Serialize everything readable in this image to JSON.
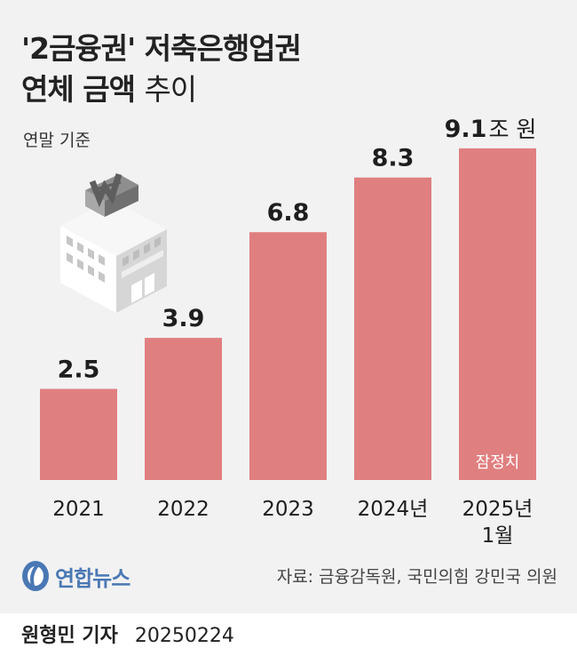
{
  "title": {
    "line1": "'2금융권' 저축은행업권",
    "line2_bold": "연체 금액",
    "line2_light": "추이"
  },
  "unit_note": "연말 기준",
  "chart_data": {
    "type": "bar",
    "categories": [
      "2021",
      "2022",
      "2023",
      "2024년",
      "2025년 1월"
    ],
    "category_lines": [
      [
        "2021"
      ],
      [
        "2022"
      ],
      [
        "2023"
      ],
      [
        "2024년"
      ],
      [
        "2025년",
        "1월"
      ]
    ],
    "values": [
      2.5,
      3.9,
      6.8,
      8.3,
      9.1
    ],
    "value_labels": [
      "2.5",
      "3.9",
      "6.8",
      "8.3",
      "9.1"
    ],
    "unit_label": "조 원",
    "annotations": [
      {
        "category": "2025년 1월",
        "text": "잠정치"
      }
    ],
    "ylim": [
      0,
      10
    ],
    "bar_color": "#e07f80",
    "grid": false,
    "title": "",
    "xlabel": "",
    "ylabel": ""
  },
  "icons": {
    "illustration": "bank-building-won-icon",
    "logo": "yonhap-logo-icon"
  },
  "logo_text": "연합뉴스",
  "source": "자료: 금융감독원, 국민의힘 강민국 의원",
  "byline": {
    "name": "원형민 기자",
    "date": "20250224"
  }
}
